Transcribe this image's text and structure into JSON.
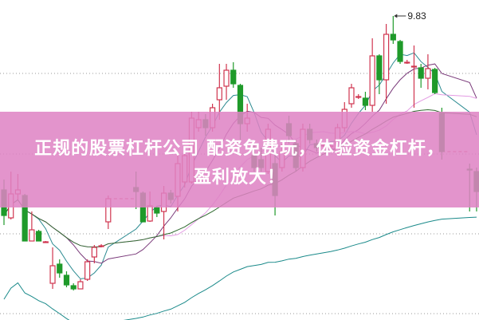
{
  "chart_data": {
    "type": "candlestick",
    "title": "",
    "ohlc_format": [
      "open",
      "high",
      "low",
      "close"
    ],
    "candles": [
      [
        7.65,
        7.78,
        7.21,
        7.33
      ],
      [
        7.3,
        7.88,
        7.28,
        7.6
      ],
      [
        7.6,
        7.85,
        7.53,
        7.65
      ],
      [
        7.58,
        7.6,
        7.01,
        7.01
      ],
      [
        7.01,
        7.38,
        7.01,
        7.15
      ],
      [
        7.13,
        7.15,
        7.01,
        7.01
      ],
      [
        7.0,
        7.01,
        6.99,
        7.0
      ],
      [
        6.48,
        6.93,
        6.41,
        6.7
      ],
      [
        6.72,
        6.78,
        6.55,
        6.61
      ],
      [
        6.58,
        6.63,
        6.43,
        6.46
      ],
      [
        6.45,
        6.48,
        6.39,
        6.41
      ],
      [
        6.41,
        6.53,
        6.41,
        6.5
      ],
      [
        6.53,
        6.78,
        6.51,
        6.75
      ],
      [
        6.81,
        6.96,
        6.73,
        6.93
      ],
      [
        6.95,
        6.97,
        6.93,
        6.95
      ],
      [
        7.25,
        7.58,
        7.16,
        7.54
      ],
      null,
      null,
      null,
      [
        7.68,
        7.88,
        7.41,
        7.63
      ],
      [
        7.61,
        7.63,
        7.25,
        7.25
      ],
      [
        7.26,
        7.63,
        7.25,
        7.45
      ],
      [
        7.43,
        7.45,
        7.31,
        7.36
      ],
      [
        7.38,
        7.7,
        7.03,
        7.61
      ],
      [
        7.61,
        7.65,
        7.48,
        7.53
      ],
      [
        7.57,
        8.08,
        7.38,
        7.98
      ],
      [
        7.75,
        8.18,
        7.68,
        8.08
      ],
      [
        7.75,
        8.63,
        7.73,
        8.55
      ],
      [
        8.43,
        8.63,
        8.38,
        8.53
      ],
      [
        8.53,
        8.6,
        8.33,
        8.43
      ],
      [
        8.43,
        8.73,
        8.38,
        8.68
      ],
      [
        8.78,
        9.23,
        8.53,
        8.93
      ],
      [
        8.95,
        9.23,
        8.78,
        9.15
      ],
      [
        9.15,
        9.25,
        8.93,
        8.98
      ],
      [
        8.96,
        8.98,
        8.28,
        8.48
      ],
      [
        8.48,
        8.73,
        8.38,
        8.55
      ],
      [
        8.08,
        8.23,
        7.88,
        7.93
      ],
      [
        8.03,
        8.18,
        7.88,
        7.93
      ],
      [
        7.88,
        8.48,
        7.85,
        8.41
      ],
      [
        7.98,
        8.08,
        7.33,
        7.58
      ],
      [
        7.93,
        8.23,
        7.88,
        8.13
      ],
      [
        8.48,
        8.58,
        8.23,
        8.33
      ],
      [
        8.23,
        8.28,
        7.88,
        7.93
      ],
      [
        7.93,
        8.48,
        7.88,
        8.41
      ],
      [
        8.41,
        8.48,
        8.23,
        8.28
      ],
      [
        8.23,
        8.28,
        8.13,
        8.18
      ],
      [
        8.21,
        8.23,
        8.19,
        8.21
      ],
      [
        8.2,
        8.23,
        8.17,
        8.2
      ],
      [
        8.13,
        8.48,
        8.08,
        8.43
      ],
      [
        8.43,
        8.75,
        8.38,
        8.66
      ],
      [
        8.73,
        8.98,
        8.68,
        8.93
      ],
      [
        8.82,
        8.85,
        8.79,
        8.82
      ],
      [
        8.8,
        8.88,
        8.65,
        8.71
      ],
      [
        8.71,
        9.55,
        8.63,
        9.33
      ],
      [
        9.33,
        9.35,
        8.85,
        9.03
      ],
      [
        9.03,
        9.73,
        8.73,
        9.6
      ],
      [
        9.6,
        9.83,
        9.48,
        9.53
      ],
      [
        9.51,
        9.53,
        9.23,
        9.26
      ],
      [
        9.25,
        9.28,
        9.23,
        9.25
      ],
      [
        9.2,
        9.46,
        8.68,
        9.2
      ],
      [
        9.18,
        9.23,
        8.93,
        9.05
      ],
      [
        9.05,
        9.35,
        8.91,
        9.17
      ],
      [
        9.16,
        9.18,
        8.85,
        8.87
      ],
      [
        8.61,
        8.68,
        8.03,
        8.13
      ],
      null,
      null,
      null,
      [
        7.91,
        7.98,
        7.38,
        7.9
      ],
      [
        7.88,
        7.93,
        7.38,
        7.63
      ]
    ],
    "max_label": "9.83",
    "ylim": [
      6.02,
      10.03
    ],
    "grid_levels": [
      9.11,
      8.1,
      7.1,
      6.1
    ],
    "moving_averages": [
      5,
      10,
      20,
      30,
      60
    ],
    "colors": {
      "up": "#d0354f",
      "down": "#1f9a2a",
      "grid": "#999999",
      "ma": [
        "#2a8a90",
        "#7a3a7a",
        "#e39ae3",
        "#2f6a2f",
        "#1a8a8a"
      ],
      "banner": "#de82c4"
    }
  },
  "banner": {
    "line1": "正规的股票杠杆公司 配资免费玩，体验资金杠杆，",
    "line2": "盈利放大！"
  }
}
